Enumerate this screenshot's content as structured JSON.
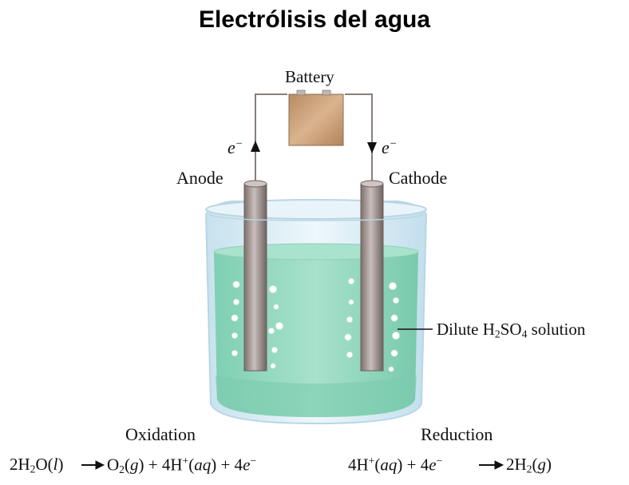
{
  "title": "Electrólisis del agua",
  "labels": {
    "battery": "Battery",
    "anode": "Anode",
    "cathode": "Cathode",
    "electron_left": "e",
    "electron_right": "e",
    "electron_charge": "−",
    "solution_prefix": "Dilute H",
    "solution_sub1": "2",
    "solution_mid": "SO",
    "solution_sub2": "4",
    "solution_suffix": " solution",
    "oxidation": "Oxidation",
    "reduction": "Reduction"
  },
  "equations": {
    "oxidation": {
      "left": "2H",
      "left_sub": "2",
      "left_rest": "O(",
      "left_state": "l",
      "left_close": ")",
      "right_a": "O",
      "right_a_sub": "2",
      "right_a_state_open": "(",
      "right_a_state": "g",
      "right_a_state_close": ") + 4H",
      "right_b_sup": "+",
      "right_b_open": "(",
      "right_b_state": "aq",
      "right_b_close": ") + 4",
      "right_c": "e",
      "right_c_sup": "−"
    },
    "reduction": {
      "left_a": "4H",
      "left_a_sup": "+",
      "left_a_open": "(",
      "left_a_state": "aq",
      "left_a_close": ") + 4",
      "left_b": "e",
      "left_b_sup": "−",
      "right": "2H",
      "right_sub": "2",
      "right_open": "(",
      "right_state": "g",
      "right_close": ")"
    }
  },
  "colors": {
    "liquid": "#8fd6bd",
    "liquid_dark": "#6fc1a6",
    "glass": "#d9ecf5",
    "electrode": "#9d8f8a",
    "battery": "#c49a70",
    "wire": "#8a7f7a"
  }
}
